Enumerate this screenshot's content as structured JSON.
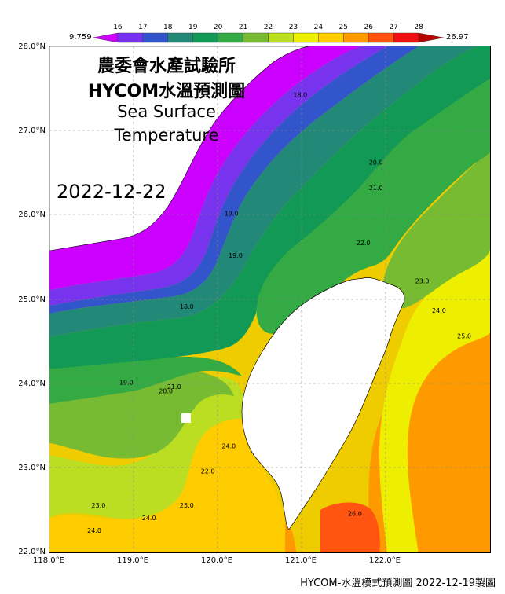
{
  "title": {
    "institution": "農委會水產試驗所",
    "product": "HYCOM水溫預測圖",
    "subtitle_line1": "Sea Surface",
    "subtitle_line2": "Temperature",
    "forecast_date": "2022-12-22"
  },
  "colorbar": {
    "min_label": "9.759",
    "max_label": "26.97",
    "ticks": [
      "16",
      "17",
      "18",
      "19",
      "20",
      "21",
      "22",
      "23",
      "24",
      "25",
      "26",
      "27",
      "28"
    ],
    "colors": [
      "#cc00ff",
      "#7733ee",
      "#3355cc",
      "#228877",
      "#119955",
      "#33aa44",
      "#77bb33",
      "#bbdd22",
      "#eeee00",
      "#ffcc00",
      "#ff9900",
      "#ff5511",
      "#ee1111",
      "#bb0000"
    ]
  },
  "axes": {
    "lat_labels": [
      "28.0°N",
      "27.0°N",
      "26.0°N",
      "25.0°N",
      "24.0°N",
      "23.0°N",
      "22.0°N"
    ],
    "lon_labels": [
      "118.0°E",
      "119.0°E",
      "120.0°E",
      "121.0°E",
      "122.0°E"
    ]
  },
  "contour_labels": [
    {
      "text": "18.0",
      "lon": 119.55,
      "lat": 24.9
    },
    {
      "text": "18.0",
      "lon": 120.9,
      "lat": 27.4
    },
    {
      "text": "19.0",
      "lon": 120.08,
      "lat": 26.0
    },
    {
      "text": "19.0",
      "lon": 120.13,
      "lat": 25.5
    },
    {
      "text": "19.0",
      "lon": 118.83,
      "lat": 24.0
    },
    {
      "text": "20.0",
      "lon": 121.8,
      "lat": 26.6
    },
    {
      "text": "20.0",
      "lon": 119.3,
      "lat": 23.9
    },
    {
      "text": "21.0",
      "lon": 121.8,
      "lat": 26.3
    },
    {
      "text": "21.0",
      "lon": 119.4,
      "lat": 23.95
    },
    {
      "text": "22.0",
      "lon": 121.65,
      "lat": 25.65
    },
    {
      "text": "22.0",
      "lon": 119.8,
      "lat": 22.95
    },
    {
      "text": "23.0",
      "lon": 122.35,
      "lat": 25.2
    },
    {
      "text": "23.0",
      "lon": 118.5,
      "lat": 22.55
    },
    {
      "text": "24.0",
      "lon": 122.55,
      "lat": 24.85
    },
    {
      "text": "24.0",
      "lon": 119.1,
      "lat": 22.4
    },
    {
      "text": "24.0",
      "lon": 120.05,
      "lat": 23.25
    },
    {
      "text": "24.0",
      "lon": 118.45,
      "lat": 22.25
    },
    {
      "text": "25.0",
      "lon": 122.85,
      "lat": 24.55
    },
    {
      "text": "25.0",
      "lon": 119.55,
      "lat": 22.55
    },
    {
      "text": "26.0",
      "lon": 121.55,
      "lat": 22.45
    }
  ],
  "footer": "HYCOM-水溫模式預測圖 2022-12-19製圖"
}
